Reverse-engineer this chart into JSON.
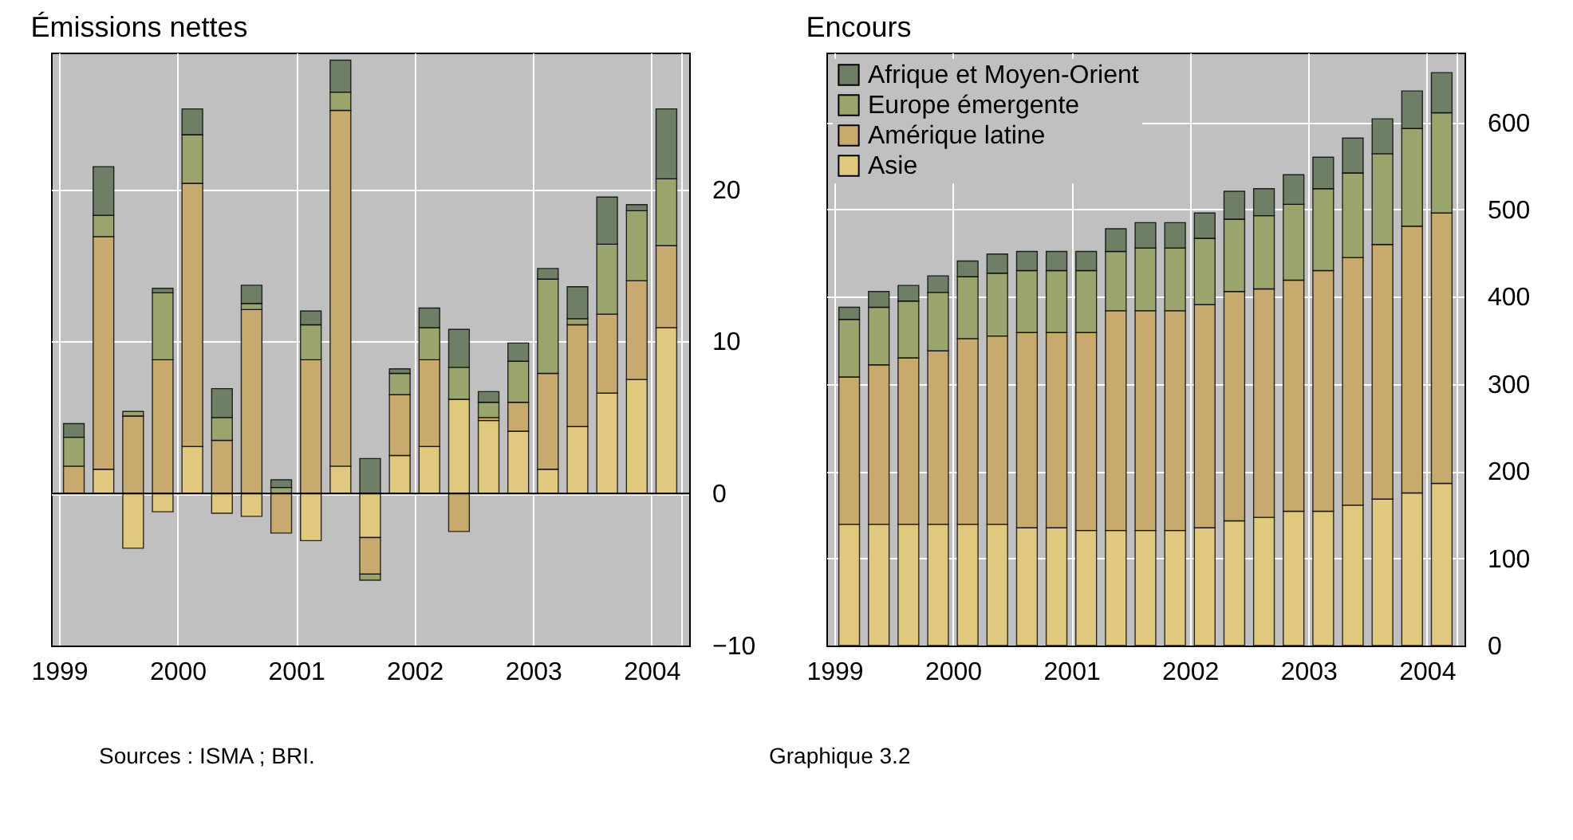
{
  "chart_data": [
    {
      "type": "bar",
      "stacked": true,
      "title": "Émissions nettes",
      "x": [
        1999.125,
        1999.375,
        1999.625,
        1999.875,
        2000.125,
        2000.375,
        2000.625,
        2000.875,
        2001.125,
        2001.375,
        2001.625,
        2001.875,
        2002.125,
        2002.375,
        2002.625,
        2002.875,
        2003.125,
        2003.375,
        2003.625,
        2003.875,
        2004.125
      ],
      "series": [
        {
          "color": "#e0c97e",
          "values": [
            0,
            1.6,
            -3.6,
            -1.2,
            3.1,
            -1.3,
            -1.5,
            0,
            -3.1,
            1.8,
            -2.9,
            2.5,
            3.1,
            6.2,
            4.8,
            4.1,
            1.6,
            4.4,
            6.6,
            7.5,
            10.9
          ]
        },
        {
          "color": "#c8a96e",
          "values": [
            1.8,
            15.3,
            5.1,
            8.8,
            17.3,
            3.5,
            12.1,
            -2.6,
            8.8,
            23.4,
            -2.4,
            4.0,
            5.7,
            -2.5,
            0.2,
            1.9,
            6.3,
            6.7,
            5.2,
            6.5,
            5.4
          ]
        },
        {
          "color": "#9aa56e",
          "values": [
            1.9,
            1.4,
            0.3,
            4.4,
            3.2,
            1.5,
            0.4,
            0.4,
            2.3,
            1.2,
            -0.4,
            1.4,
            2.1,
            2.1,
            1.0,
            2.7,
            6.2,
            0.4,
            4.6,
            4.6,
            4.4
          ]
        },
        {
          "color": "#6e7f66",
          "values": [
            0.9,
            3.2,
            null,
            0.3,
            1.7,
            1.9,
            1.2,
            0.5,
            0.9,
            2.1,
            2.3,
            0.3,
            1.3,
            2.5,
            0.7,
            1.2,
            0.7,
            2.1,
            3.1,
            0.4,
            4.6
          ]
        }
      ],
      "xlim": [
        1999,
        2004.25
      ],
      "xticks": [
        1999,
        2000,
        2001,
        2002,
        2003,
        2004,
        {
          "value": 2004.25,
          "label": null
        }
      ],
      "ylim": [
        -10,
        29
      ],
      "yticks": [
        -10,
        0,
        10,
        20
      ],
      "grid": true,
      "ref_lines": [
        {
          "axis": "y",
          "value": 0,
          "color": "#000000"
        }
      ],
      "annotations": [
        "Sources : ISMA ; BRI."
      ]
    },
    {
      "type": "bar",
      "stacked": true,
      "title": "Encours",
      "x": [
        1999.125,
        1999.375,
        1999.625,
        1999.875,
        2000.125,
        2000.375,
        2000.625,
        2000.875,
        2001.125,
        2001.375,
        2001.625,
        2001.875,
        2002.125,
        2002.375,
        2002.625,
        2002.875,
        2003.125,
        2003.375,
        2003.625,
        2003.875,
        2004.125
      ],
      "series": [
        {
          "name": "Asie",
          "color": "#e0c97e",
          "values": [
            139,
            139,
            139,
            139,
            139,
            139,
            135,
            135,
            132,
            132,
            132,
            132,
            135,
            143,
            147,
            154,
            154,
            161,
            168,
            175,
            186
          ]
        },
        {
          "name": "Amérique latine",
          "color": "#c8a96e",
          "values": [
            169,
            183,
            191,
            199,
            213,
            216,
            224,
            224,
            227,
            252,
            252,
            252,
            256,
            263,
            262,
            265,
            276,
            284,
            292,
            306,
            310
          ]
        },
        {
          "name": "Europe émergente",
          "color": "#9aa56e",
          "values": [
            66,
            66,
            65,
            67,
            71,
            72,
            71,
            71,
            71,
            68,
            72,
            72,
            76,
            83,
            84,
            87,
            94,
            97,
            104,
            112,
            115
          ]
        },
        {
          "name": "Afrique et Moyen-Orient",
          "color": "#6e7f66",
          "values": [
            14,
            18,
            18,
            19,
            18,
            22,
            22,
            22,
            22,
            26,
            29,
            29,
            29,
            32,
            31,
            34,
            36,
            40,
            40,
            43,
            46
          ]
        }
      ],
      "xlim": [
        1999,
        2004.25
      ],
      "xticks": [
        1999,
        2000,
        2001,
        2002,
        2003,
        2004,
        {
          "value": 2004.25,
          "label": null
        }
      ],
      "ylim": [
        0,
        680
      ],
      "yticks": [
        0,
        100,
        200,
        300,
        400,
        500,
        600
      ],
      "grid": true,
      "legend": "top left",
      "annotations": [
        "Graphique 3.2"
      ]
    }
  ]
}
